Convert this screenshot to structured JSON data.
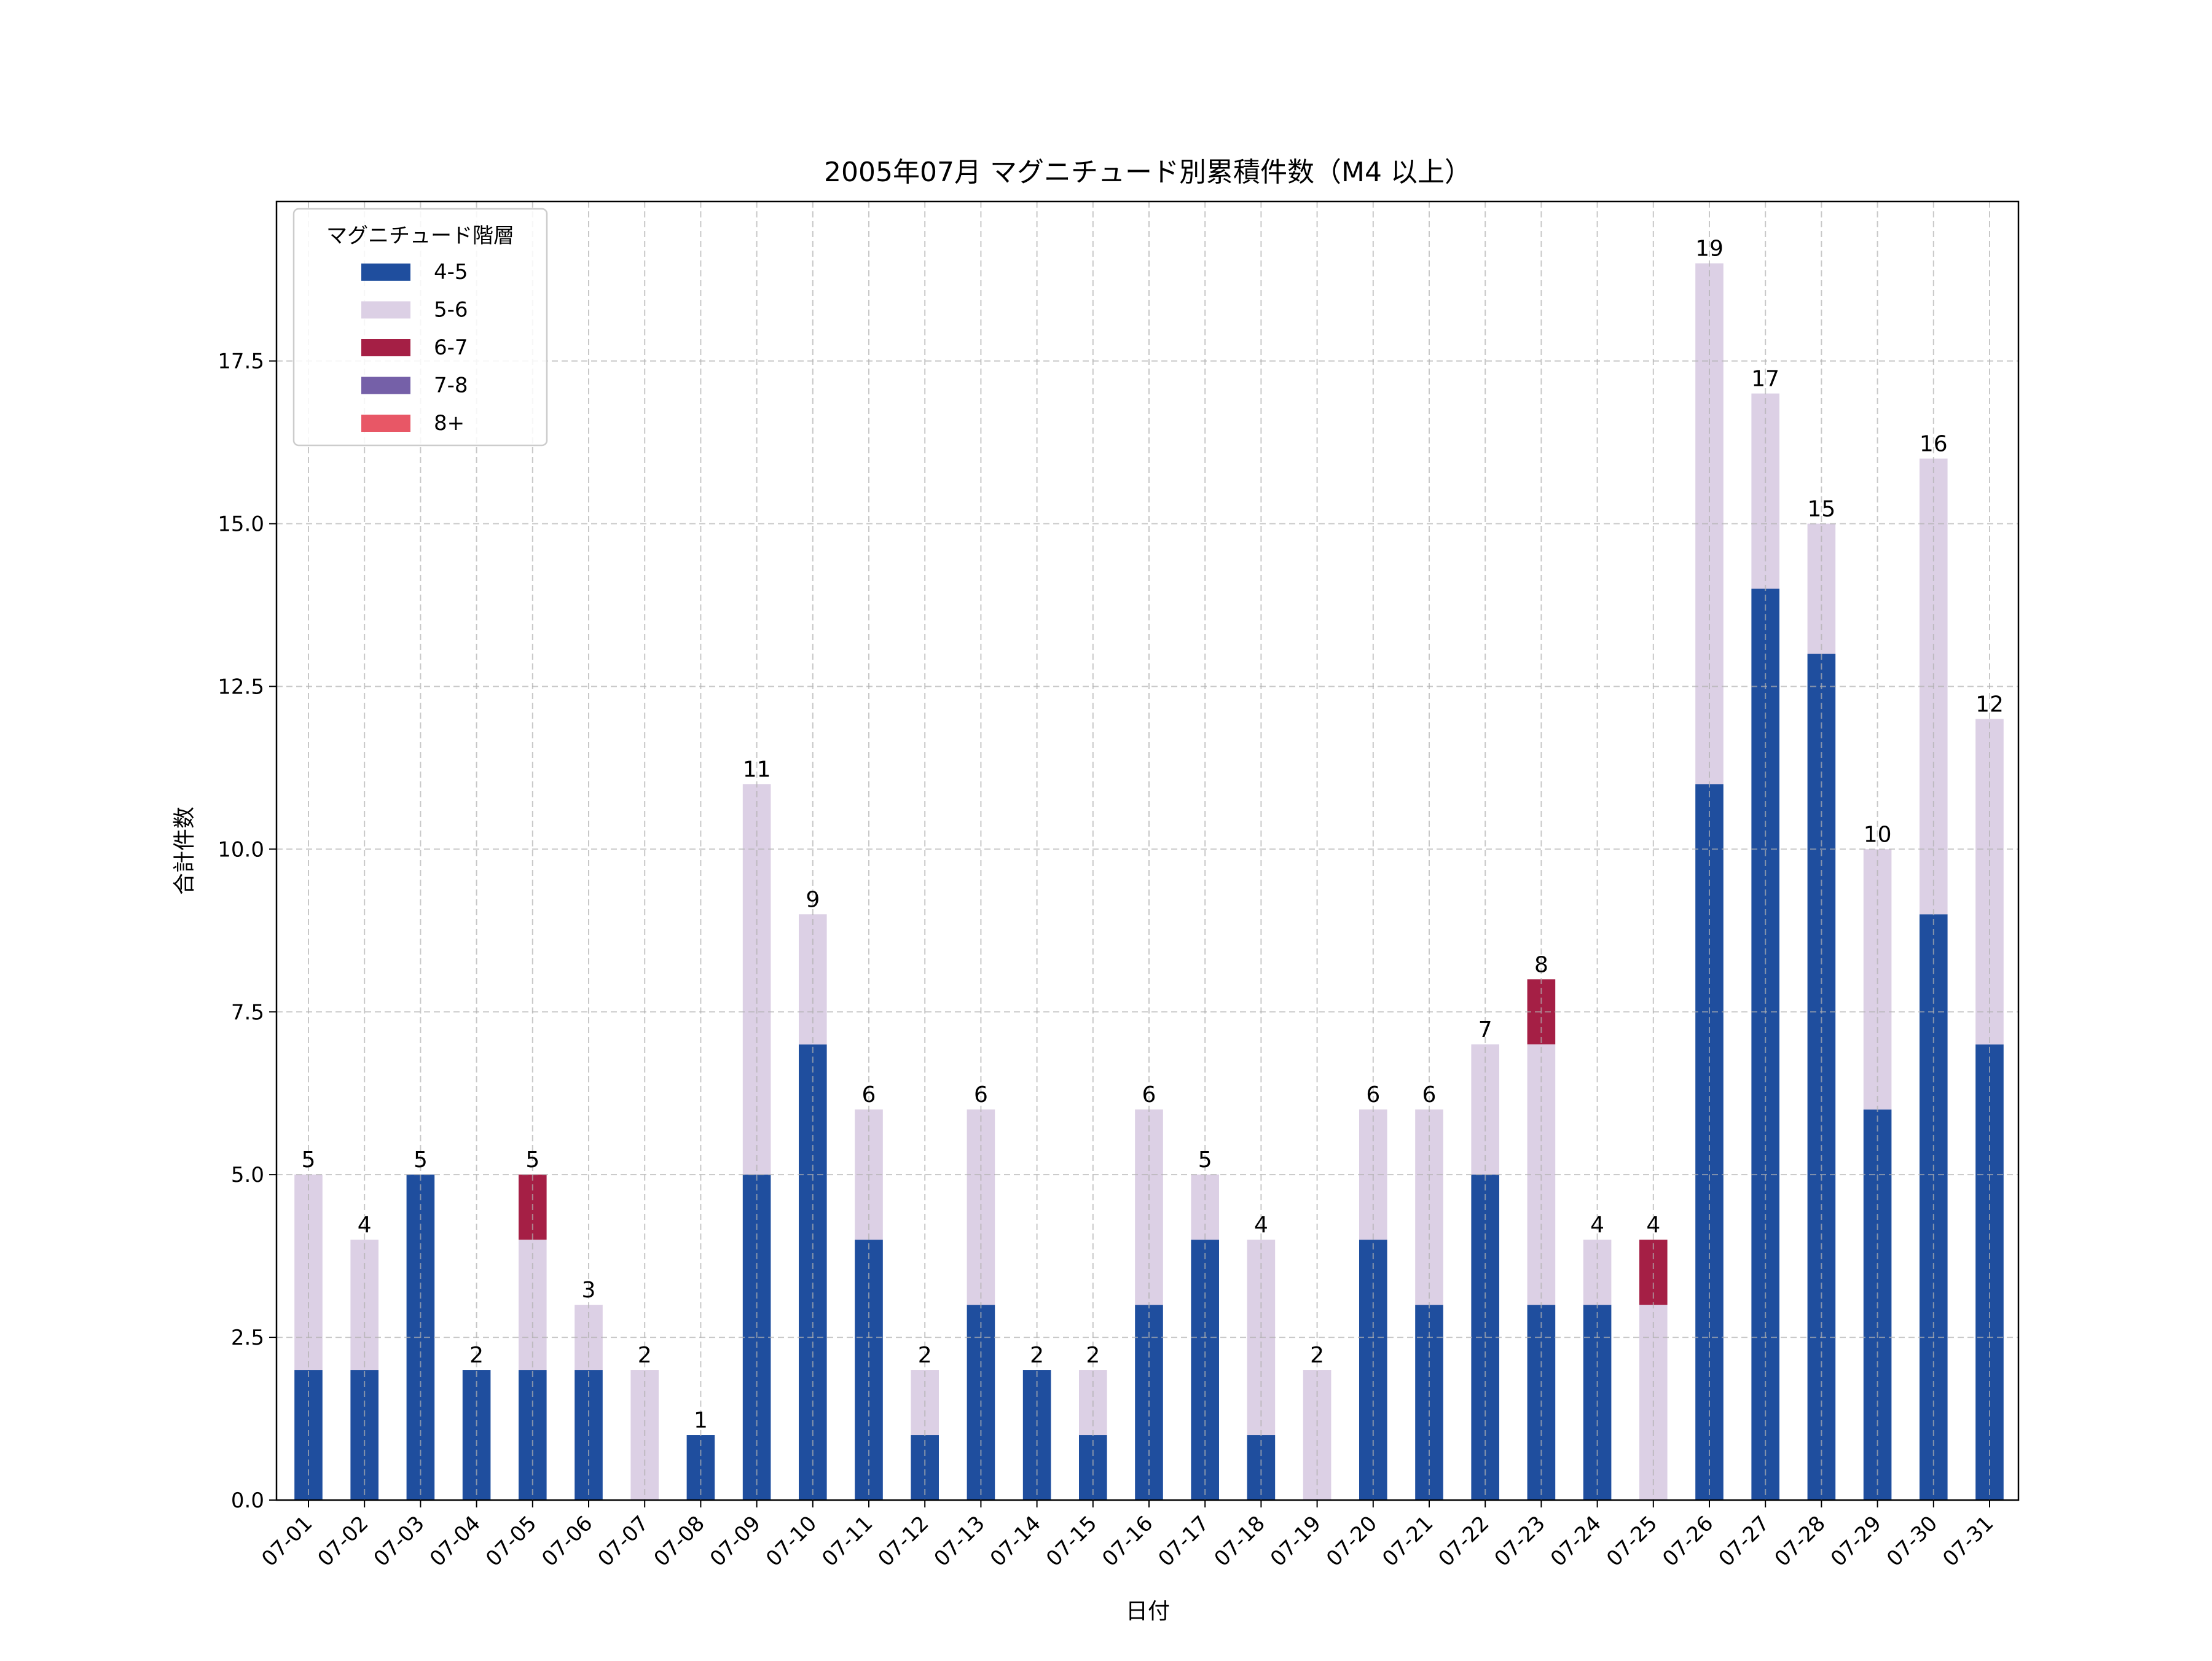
{
  "chart_data": {
    "type": "bar",
    "stacked": true,
    "title": "2005年07月 マグニチュード別累積件数（M4 以上）",
    "xlabel": "日付",
    "ylabel": "合計件数",
    "ylim": [
      0,
      19.95
    ],
    "yticks": [
      "0.0",
      "2.5",
      "5.0",
      "7.5",
      "10.0",
      "12.5",
      "15.0",
      "17.5"
    ],
    "grid": true,
    "legend": {
      "title": "マグニチュード階層",
      "placement": "top-left"
    },
    "categories": [
      "07-01",
      "07-02",
      "07-03",
      "07-04",
      "07-05",
      "07-06",
      "07-07",
      "07-08",
      "07-09",
      "07-10",
      "07-11",
      "07-12",
      "07-13",
      "07-14",
      "07-15",
      "07-16",
      "07-17",
      "07-18",
      "07-19",
      "07-20",
      "07-21",
      "07-22",
      "07-23",
      "07-24",
      "07-25",
      "07-26",
      "07-27",
      "07-28",
      "07-29",
      "07-30",
      "07-31"
    ],
    "series": [
      {
        "name": "4-5",
        "color": "#1f4e9e",
        "values": [
          2,
          2,
          5,
          2,
          2,
          2,
          0,
          1,
          5,
          7,
          4,
          1,
          3,
          2,
          1,
          3,
          4,
          1,
          0,
          4,
          3,
          5,
          3,
          3,
          0,
          11,
          14,
          13,
          6,
          9,
          7
        ]
      },
      {
        "name": "5-6",
        "color": "#dcd0e5",
        "values": [
          3,
          2,
          0,
          0,
          2,
          1,
          2,
          0,
          6,
          2,
          2,
          1,
          3,
          0,
          1,
          3,
          1,
          3,
          2,
          2,
          3,
          2,
          4,
          1,
          3,
          8,
          3,
          2,
          4,
          7,
          5
        ]
      },
      {
        "name": "6-7",
        "color": "#a51f45",
        "values": [
          0,
          0,
          0,
          0,
          1,
          0,
          0,
          0,
          0,
          0,
          0,
          0,
          0,
          0,
          0,
          0,
          0,
          0,
          0,
          0,
          0,
          0,
          1,
          0,
          1,
          0,
          0,
          0,
          0,
          0,
          0
        ]
      },
      {
        "name": "7-8",
        "color": "#7560a8",
        "values": [
          0,
          0,
          0,
          0,
          0,
          0,
          0,
          0,
          0,
          0,
          0,
          0,
          0,
          0,
          0,
          0,
          0,
          0,
          0,
          0,
          0,
          0,
          0,
          0,
          0,
          0,
          0,
          0,
          0,
          0,
          0
        ]
      },
      {
        "name": "8+",
        "color": "#e85766",
        "values": [
          0,
          0,
          0,
          0,
          0,
          0,
          0,
          0,
          0,
          0,
          0,
          0,
          0,
          0,
          0,
          0,
          0,
          0,
          0,
          0,
          0,
          0,
          0,
          0,
          0,
          0,
          0,
          0,
          0,
          0,
          0
        ]
      }
    ],
    "totals": [
      "5",
      "4",
      "5",
      "2",
      "5",
      "3",
      "2",
      "1",
      "11",
      "9",
      "6",
      "2",
      "6",
      "2",
      "2",
      "6",
      "5",
      "4",
      "2",
      "6",
      "6",
      "7",
      "8",
      "4",
      "4",
      "19",
      "17",
      "15",
      "10",
      "16",
      "12"
    ]
  }
}
